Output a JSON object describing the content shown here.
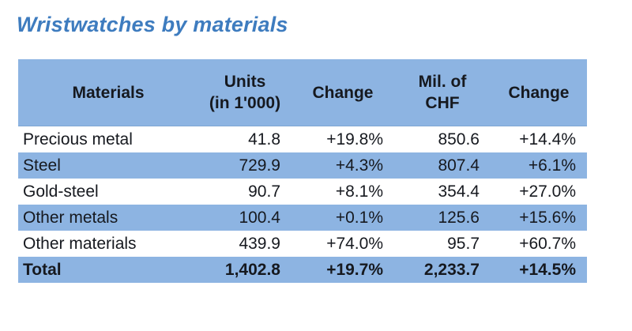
{
  "title": "Wristwatches by materials",
  "colors": {
    "title_blue": "#3e7cbf",
    "band_blue": "#8db4e2",
    "text_dark": "#16191f"
  },
  "table": {
    "columns": [
      {
        "line1": "Materials",
        "line2": ""
      },
      {
        "line1": "Units",
        "line2": "(in 1'000)"
      },
      {
        "line1": "Change",
        "line2": ""
      },
      {
        "line1": "Mil. of",
        "line2": "CHF"
      },
      {
        "line1": "Change",
        "line2": ""
      }
    ],
    "rows": [
      {
        "material": "Precious metal",
        "units": "41.8",
        "units_change": "+19.8%",
        "chf": "850.6",
        "chf_change": "+14.4%"
      },
      {
        "material": "Steel",
        "units": "729.9",
        "units_change": "+4.3%",
        "chf": "807.4",
        "chf_change": "+6.1%"
      },
      {
        "material": "Gold-steel",
        "units": "90.7",
        "units_change": "+8.1%",
        "chf": "354.4",
        "chf_change": "+27.0%"
      },
      {
        "material": "Other metals",
        "units": "100.4",
        "units_change": "+0.1%",
        "chf": "125.6",
        "chf_change": "+15.6%"
      },
      {
        "material": "Other materials",
        "units": "439.9",
        "units_change": "+74.0%",
        "chf": "95.7",
        "chf_change": "+60.7%"
      },
      {
        "material": "Total",
        "units": "1,402.8",
        "units_change": "+19.7%",
        "chf": "2,233.7",
        "chf_change": "+14.5%"
      }
    ]
  },
  "chart_data": {
    "type": "table",
    "title": "Wristwatches by materials",
    "columns": [
      "Materials",
      "Units (in 1'000)",
      "Change",
      "Mil. of CHF",
      "Change"
    ],
    "rows": [
      [
        "Precious metal",
        41.8,
        "+19.8%",
        850.6,
        "+14.4%"
      ],
      [
        "Steel",
        729.9,
        "+4.3%",
        807.4,
        "+6.1%"
      ],
      [
        "Gold-steel",
        90.7,
        "+8.1%",
        354.4,
        "+27.0%"
      ],
      [
        "Other metals",
        100.4,
        "+0.1%",
        125.6,
        "+15.6%"
      ],
      [
        "Other materials",
        439.9,
        "+74.0%",
        95.7,
        "+60.7%"
      ],
      [
        "Total",
        1402.8,
        "+19.7%",
        2233.7,
        "+14.5%"
      ]
    ],
    "layout": {
      "row_striping": "white / blue alternating starting white, header and Total row blue",
      "numeric_alignment": "right",
      "header_alignment": "center"
    }
  }
}
